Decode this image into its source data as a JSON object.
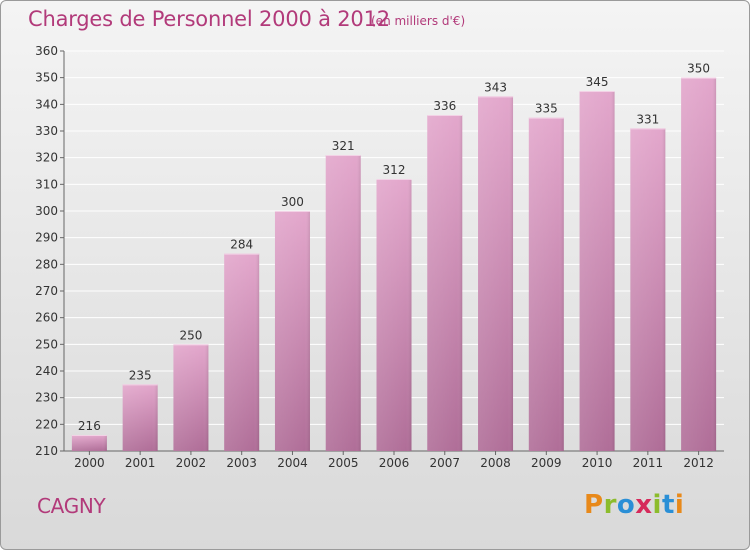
{
  "header": {
    "title": "Charges de Personnel 2000 à 2012",
    "subtitle": "(en milliers d'€)"
  },
  "footer": {
    "city": "CAGNY",
    "logo_text": "Proxiti",
    "logo_colors": [
      "#e8891a",
      "#8cbc2c",
      "#2a8fd6",
      "#d62a5b",
      "#8cbc2c",
      "#2a8fd6",
      "#e8891a"
    ]
  },
  "colors": {
    "accent": "#b23a7a",
    "bar_top": "#e3a7cc",
    "bar_bottom": "#b06e98",
    "grid": "#ffffff"
  },
  "chart_data": {
    "type": "bar",
    "title": "Charges de Personnel 2000 à 2012",
    "subtitle": "(en milliers d'€)",
    "xlabel": "",
    "ylabel": "",
    "categories": [
      "2000",
      "2001",
      "2002",
      "2003",
      "2004",
      "2005",
      "2006",
      "2007",
      "2008",
      "2009",
      "2010",
      "2011",
      "2012"
    ],
    "values": [
      216,
      235,
      250,
      284,
      300,
      321,
      312,
      336,
      343,
      335,
      345,
      331,
      350
    ],
    "ylim": [
      210,
      360
    ],
    "yticks": [
      210,
      220,
      230,
      240,
      250,
      260,
      270,
      280,
      290,
      300,
      310,
      320,
      330,
      340,
      350,
      360
    ],
    "grid": true,
    "legend": "none"
  }
}
